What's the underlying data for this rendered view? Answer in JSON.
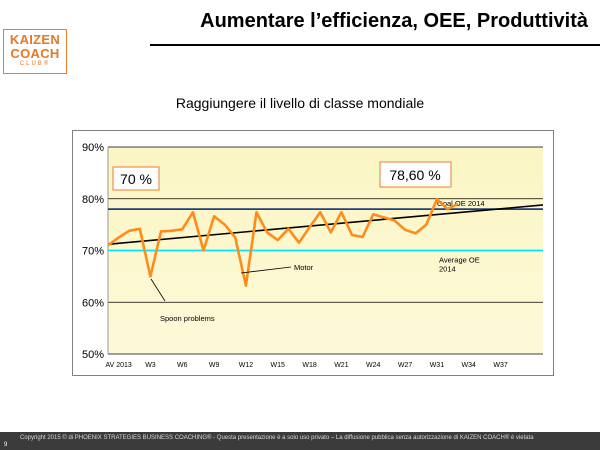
{
  "header": {
    "title": "Aumentare l’efficienza, OEE, Produttività",
    "logo": {
      "line1": "KAIZEN",
      "line2": "COACH",
      "line3": "CLUB®"
    }
  },
  "subtitle": "Raggiungere il livello di classe mondiale",
  "footer": {
    "copyright": "Copyright 2015 © di PHOENIX STRATEGIES BUSINESS COACHING® - Questa presentazione è a solo uso privato – La diffusione pubblica senza autorizzazione di KAIZEN COACH® è vietata",
    "page_number": "9"
  },
  "colors": {
    "series": "#ff8c1a",
    "goal": "#1f3f7f",
    "average": "#00e5ff",
    "trend": "#000000",
    "band_top": "#fbf5c4",
    "band_bottom": "#fdf9d8",
    "callout_border": "#ed7d31",
    "logo": "#e87722"
  },
  "chart_data": {
    "type": "line",
    "ylim": [
      50,
      90
    ],
    "yticks": [
      "50%",
      "60%",
      "70%",
      "80%",
      "90%"
    ],
    "ytick_values": [
      50,
      60,
      70,
      80,
      90
    ],
    "x_index_range": [
      0,
      41
    ],
    "xtick_labels": [
      "AV 2013",
      "W3",
      "W6",
      "W9",
      "W12",
      "W15",
      "W18",
      "W21",
      "W24",
      "W27",
      "W31",
      "W34",
      "W37"
    ],
    "xtick_positions": [
      1,
      4,
      7,
      10,
      13,
      16,
      19,
      22,
      25,
      28,
      31,
      34,
      37
    ],
    "grid": true,
    "series": [
      {
        "values": [
          71.0,
          72.5,
          73.8,
          74.2,
          65.0,
          73.7,
          73.8,
          74.1,
          77.4,
          70.0,
          76.6,
          75.0,
          72.5,
          63.2,
          77.4,
          73.5,
          72.0,
          74.2,
          71.5,
          74.5,
          77.4,
          73.5,
          77.4,
          73.0,
          72.6,
          77.0,
          76.4,
          75.8,
          74.0,
          73.3,
          75.0,
          79.9,
          78.0,
          79.0
        ],
        "x_start": 0
      }
    ],
    "goal": {
      "label": "Goal OE 2014",
      "value": 78
    },
    "average": {
      "label_line1": "Average OE",
      "label_line2": "2014",
      "value": 70
    },
    "trend": {
      "start": [
        0,
        71.2
      ],
      "end": [
        41,
        78.8
      ]
    },
    "callouts": [
      {
        "text": "70 %"
      },
      {
        "text": "78,60 %"
      }
    ],
    "annotations": [
      {
        "text": "Motor"
      },
      {
        "text": "Spoon problems"
      }
    ]
  }
}
